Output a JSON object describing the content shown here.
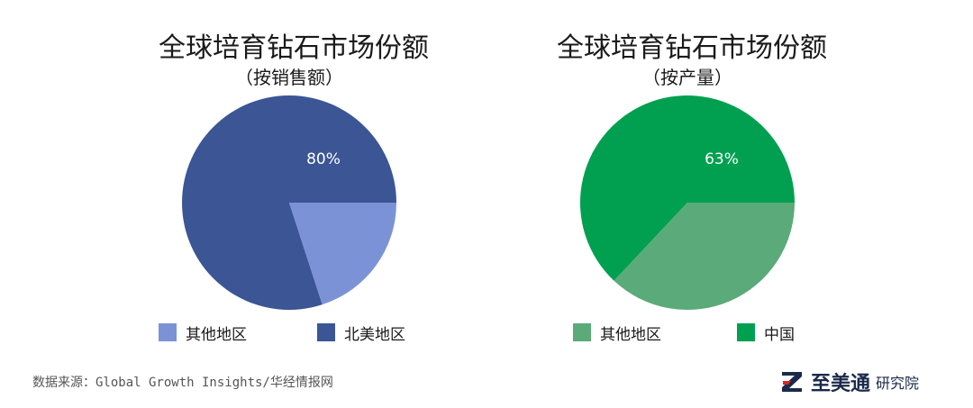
{
  "colors": {
    "left_major": "#3B5595",
    "left_minor": "#7B93D6",
    "right_major": "#00A050",
    "right_minor": "#5BAA7A",
    "label_text": "#ffffff",
    "brand": "#1a2a4a"
  },
  "chart_data": [
    {
      "type": "pie",
      "title": "全球培育钻石市场份额",
      "subtitle": "（按销售额）",
      "slices": [
        {
          "label": "北美地区",
          "value": 80,
          "color": "#3B5595",
          "data_label": "80%"
        },
        {
          "label": "其他地区",
          "value": 20,
          "color": "#7B93D6"
        }
      ],
      "legend": [
        "其他地区",
        "北美地区"
      ],
      "legend_placement": "bottom"
    },
    {
      "type": "pie",
      "title": "全球培育钻石市场份额",
      "subtitle": "（按产量）",
      "slices": [
        {
          "label": "中国",
          "value": 63,
          "color": "#00A050",
          "data_label": "63%"
        },
        {
          "label": "其他地区",
          "value": 37,
          "color": "#5BAA7A"
        }
      ],
      "legend": [
        "其他地区",
        "中国"
      ],
      "legend_placement": "bottom"
    }
  ],
  "footer": {
    "source": "数据来源：Global Growth Insights/华经情报网",
    "brand_name": "至美通",
    "brand_suffix": "研究院",
    "logo_icon": "z-logo-icon"
  }
}
